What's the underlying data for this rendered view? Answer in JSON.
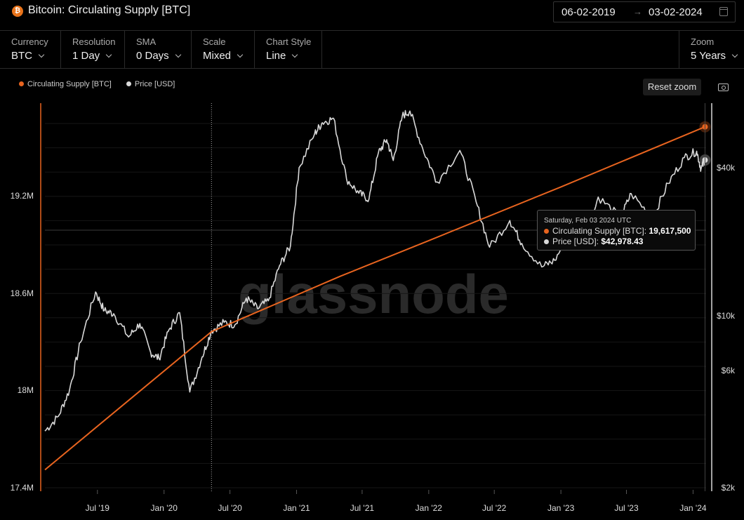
{
  "header": {
    "title": "Bitcoin: Circulating Supply [BTC]",
    "date_start": "06-02-2019",
    "date_end": "03-02-2024",
    "date_arrow": "→"
  },
  "toolbar": [
    {
      "label": "Currency",
      "value": "BTC"
    },
    {
      "label": "Resolution",
      "value": "1 Day"
    },
    {
      "label": "SMA",
      "value": "0 Days"
    },
    {
      "label": "Scale",
      "value": "Mixed"
    },
    {
      "label": "Chart Style",
      "value": "Line"
    }
  ],
  "zoom": {
    "label": "Zoom",
    "value": "5 Years"
  },
  "legend": [
    {
      "name": "Circulating Supply [BTC]",
      "color": "#e8641f"
    },
    {
      "name": "Price [USD]",
      "color": "#d9d9d9"
    }
  ],
  "reset_zoom_label": "Reset zoom",
  "watermark": "glassnode",
  "tooltip": {
    "date": "Saturday, Feb 03 2024 UTC",
    "supply_label": "Circulating Supply [BTC]:",
    "supply_value": "19,617,500",
    "price_label": "Price [USD]:",
    "price_value": "$42,978.43"
  },
  "chart_data": {
    "type": "line",
    "x_ticks": [
      "Jul '19",
      "Jan '20",
      "Jul '20",
      "Jan '21",
      "Jul '21",
      "Jan '22",
      "Jul '22",
      "Jan '23",
      "Jul '23",
      "Jan '24"
    ],
    "y_left_ticks": [
      "17.4M",
      "18M",
      "18.6M",
      "19.2M"
    ],
    "y_left_range": [
      17.4,
      19.8
    ],
    "y_right_ticks": [
      "$2k",
      "$6k",
      "$10k",
      "$40k"
    ],
    "y_right_scale": "log",
    "series": [
      {
        "name": "Circulating Supply [BTC]",
        "axis": "left",
        "color": "#e8641f",
        "points": [
          [
            "2019-02-06",
            17.51
          ],
          [
            "2020-05-11",
            18.36
          ],
          [
            "2021-05-01",
            18.7
          ],
          [
            "2022-01-01",
            18.92
          ],
          [
            "2023-01-01",
            19.25
          ],
          [
            "2024-02-03",
            19.62
          ]
        ]
      },
      {
        "name": "Price [USD]",
        "axis": "right",
        "color": "#d9d9d9",
        "points": [
          [
            "2019-02-06",
            3400
          ],
          [
            "2019-03-15",
            3900
          ],
          [
            "2019-04-15",
            5000
          ],
          [
            "2019-05-15",
            7800
          ],
          [
            "2019-06-26",
            12500
          ],
          [
            "2019-07-20",
            10500
          ],
          [
            "2019-08-15",
            10200
          ],
          [
            "2019-09-25",
            8200
          ],
          [
            "2019-10-26",
            9300
          ],
          [
            "2019-11-25",
            7100
          ],
          [
            "2019-12-18",
            6700
          ],
          [
            "2020-01-15",
            8800
          ],
          [
            "2020-02-13",
            10300
          ],
          [
            "2020-03-12",
            4900
          ],
          [
            "2020-04-15",
            6800
          ],
          [
            "2020-05-11",
            8700
          ],
          [
            "2020-06-15",
            9400
          ],
          [
            "2020-07-15",
            9200
          ],
          [
            "2020-08-15",
            11800
          ],
          [
            "2020-09-15",
            10700
          ],
          [
            "2020-10-15",
            11500
          ],
          [
            "2020-11-15",
            16000
          ],
          [
            "2020-12-15",
            19200
          ],
          [
            "2021-01-08",
            40000
          ],
          [
            "2021-02-20",
            55000
          ],
          [
            "2021-03-13",
            61000
          ],
          [
            "2021-04-13",
            63500
          ],
          [
            "2021-05-19",
            36000
          ],
          [
            "2021-06-22",
            31500
          ],
          [
            "2021-07-20",
            29800
          ],
          [
            "2021-08-15",
            46000
          ],
          [
            "2021-09-07",
            52000
          ],
          [
            "2021-09-25",
            42800
          ],
          [
            "2021-10-20",
            65000
          ],
          [
            "2021-11-10",
            68000
          ],
          [
            "2021-12-15",
            48000
          ],
          [
            "2022-01-24",
            35000
          ],
          [
            "2022-03-28",
            47000
          ],
          [
            "2022-05-12",
            29000
          ],
          [
            "2022-06-18",
            19000
          ],
          [
            "2022-08-13",
            24400
          ],
          [
            "2022-09-15",
            19700
          ],
          [
            "2022-11-09",
            15800
          ],
          [
            "2022-12-15",
            16800
          ],
          [
            "2023-01-20",
            21000
          ],
          [
            "2023-03-10",
            20000
          ],
          [
            "2023-04-14",
            30400
          ],
          [
            "2023-06-15",
            25100
          ],
          [
            "2023-07-14",
            31400
          ],
          [
            "2023-09-11",
            25000
          ],
          [
            "2023-10-24",
            34500
          ],
          [
            "2023-12-08",
            44000
          ],
          [
            "2024-01-11",
            46700
          ],
          [
            "2024-01-23",
            39500
          ],
          [
            "2024-02-03",
            42978
          ]
        ]
      }
    ]
  }
}
